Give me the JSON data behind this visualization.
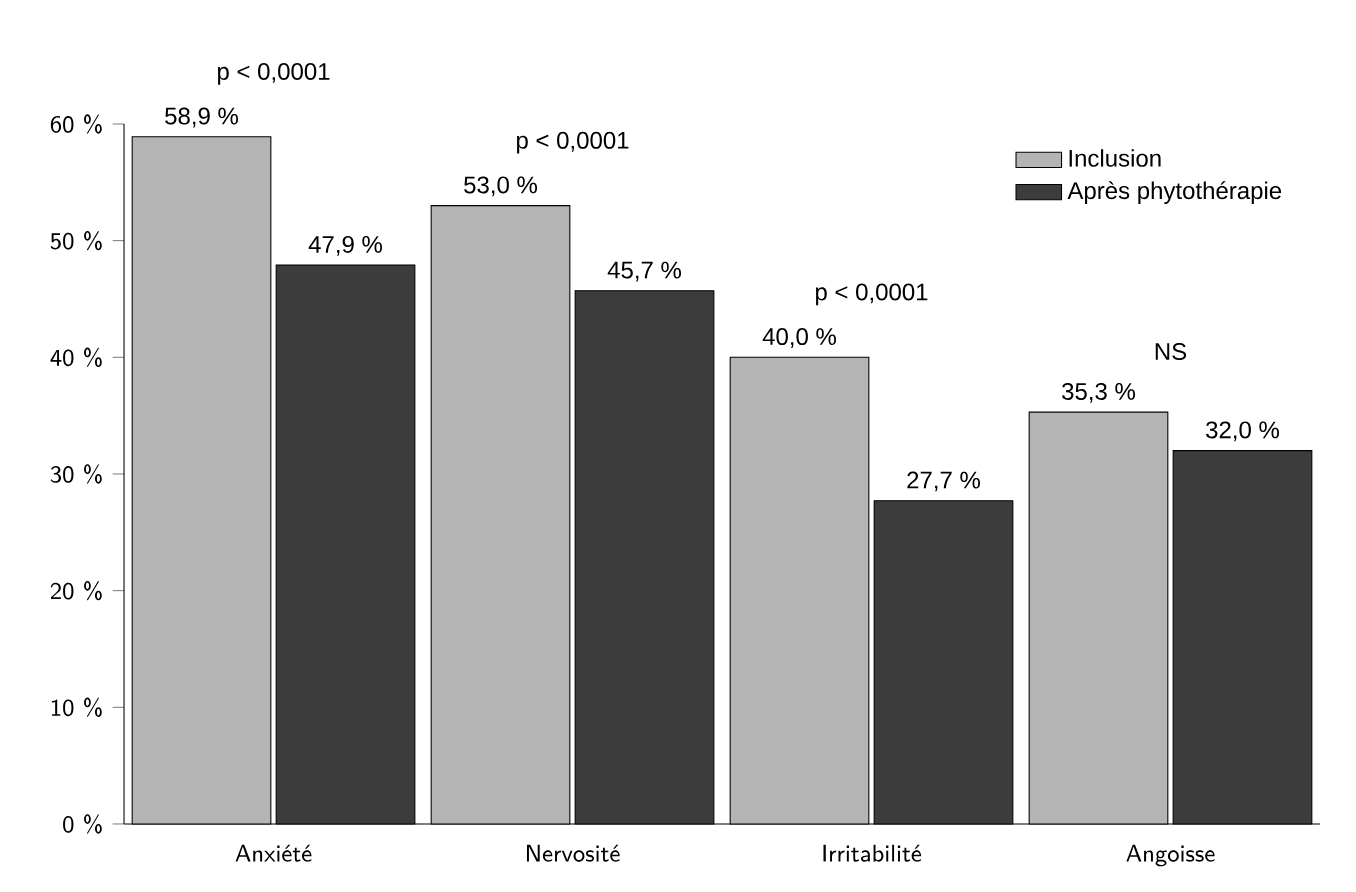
{
  "chart_data": {
    "type": "bar",
    "categories": [
      "Anxiété",
      "Nervosité",
      "Irritabilité",
      "Angoisse"
    ],
    "series": [
      {
        "name": "Inclusion",
        "color": "#b4b4b4",
        "values": [
          58.9,
          53.0,
          40.0,
          35.3
        ],
        "value_labels": [
          "58,9 %",
          "53,0 %",
          "40,0 %",
          "35,3 %"
        ]
      },
      {
        "name": "Après phytothérapie",
        "color": "#3c3c3c",
        "values": [
          47.9,
          45.7,
          27.7,
          32.0
        ],
        "value_labels": [
          "47,9 %",
          "45,7 %",
          "27,7 %",
          "32,0 %"
        ]
      }
    ],
    "ylim": [
      0,
      60
    ],
    "yticks": [
      {
        "value": 0,
        "label": "0 %"
      },
      {
        "value": 10,
        "label": "10 %"
      },
      {
        "value": 20,
        "label": "20 %"
      },
      {
        "value": 30,
        "label": "30 %"
      },
      {
        "value": 40,
        "label": "40 %"
      },
      {
        "value": 50,
        "label": "50 %"
      },
      {
        "value": 60,
        "label": "60 %"
      }
    ],
    "annotations": [
      "p < 0,0001",
      "p < 0,0001",
      "p < 0,0001",
      "NS"
    ],
    "legend": "top right",
    "grid": false
  }
}
